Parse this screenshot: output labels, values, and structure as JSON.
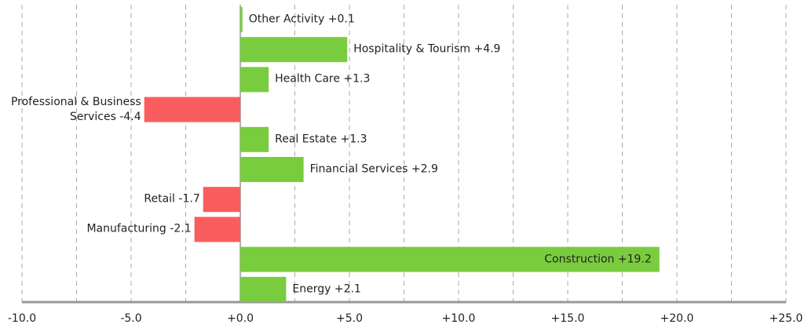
{
  "chart_data": {
    "type": "hbar",
    "categories": [
      "Other Activity",
      "Hospitality & Tourism",
      "Health Care",
      "Professional & Business Services",
      "Real Estate",
      "Financial Services",
      "Retail",
      "Manufacturing",
      "Construction",
      "Energy"
    ],
    "values": [
      0.1,
      4.9,
      1.3,
      -4.4,
      1.3,
      2.9,
      -1.7,
      -2.1,
      19.2,
      2.1
    ],
    "value_labels": [
      "+0.1",
      "+4.9",
      "+1.3",
      "-4.4",
      "+1.3",
      "+2.9",
      "-1.7",
      "-2.1",
      "+19.2",
      "+2.1"
    ],
    "positive_color": "#7acc3f",
    "negative_color": "#fa5d5d",
    "xlim": [
      -10,
      25
    ],
    "xticks": [
      {
        "value": -10,
        "label": "-10.0"
      },
      {
        "value": -5,
        "label": "-5.0"
      },
      {
        "value": 0,
        "label": "+0.0"
      },
      {
        "value": 5,
        "label": "+5.0"
      },
      {
        "value": 10,
        "label": "+10.0"
      },
      {
        "value": 15,
        "label": "+15.0"
      },
      {
        "value": 20,
        "label": "+20.0"
      },
      {
        "value": 25,
        "label": "+25.0"
      }
    ],
    "minor_xticks": [
      -7.5,
      -2.5,
      2.5,
      7.5,
      12.5,
      17.5,
      22.5
    ],
    "grid": true
  }
}
